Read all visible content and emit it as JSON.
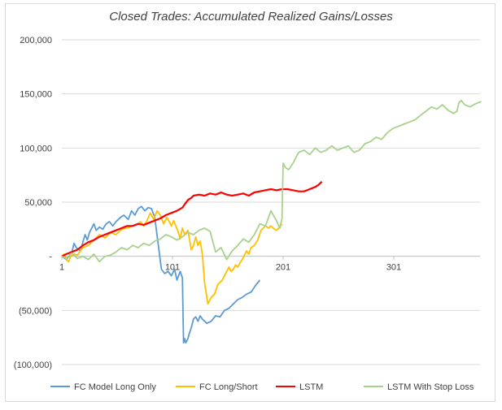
{
  "chart_data": {
    "type": "line",
    "title": "Closed Trades: Accumulated Realized Gains/Losses",
    "xlabel": "",
    "ylabel": "",
    "xlim": [
      1,
      380
    ],
    "ylim": [
      -100000,
      200000
    ],
    "y_ticks": [
      200000,
      150000,
      100000,
      50000,
      0,
      -50000,
      -100000
    ],
    "y_tick_labels": [
      "200,000",
      "150,000",
      "100,000",
      "50,000",
      "-",
      "(50,000)",
      "(100,000)"
    ],
    "x_ticks": [
      1,
      101,
      201,
      301
    ],
    "x_tick_labels": [
      "1",
      "101",
      "201",
      "301"
    ],
    "grid": "horizontal",
    "legend_position": "bottom",
    "series": [
      {
        "name": "FC Model Long Only",
        "color": "#5b9bd5",
        "x": [
          1,
          5,
          10,
          12,
          14,
          18,
          20,
          22,
          24,
          26,
          30,
          32,
          35,
          38,
          41,
          44,
          47,
          50,
          54,
          57,
          61,
          64,
          67,
          70,
          73,
          76,
          79,
          82,
          85,
          88,
          91,
          94,
          97,
          100,
          103,
          105,
          108,
          110,
          111,
          112,
          113,
          114,
          115,
          116,
          118,
          120,
          122,
          124,
          126,
          128,
          132,
          136,
          140,
          144,
          148,
          152,
          156,
          160,
          164,
          168,
          172,
          176,
          180
        ],
        "y": [
          0,
          -3000,
          3000,
          12000,
          8000,
          5000,
          13000,
          20000,
          15000,
          22000,
          30000,
          24000,
          27000,
          25000,
          30000,
          32000,
          28000,
          32000,
          36000,
          38000,
          34000,
          42000,
          38000,
          44000,
          46000,
          42000,
          45000,
          44000,
          36000,
          12000,
          -12000,
          -16000,
          -14000,
          -18000,
          -12000,
          -22000,
          -14000,
          -20000,
          -80000,
          -76000,
          -80000,
          -78000,
          -76000,
          -72000,
          -66000,
          -58000,
          -56000,
          -60000,
          -55000,
          -58000,
          -62000,
          -60000,
          -55000,
          -56000,
          -50000,
          -48000,
          -44000,
          -40000,
          -38000,
          -35000,
          -33000,
          -27000,
          -22000
        ]
      },
      {
        "name": "FC Long/Short",
        "color": "#ffc000",
        "x": [
          1,
          3,
          5,
          7,
          9,
          12,
          15,
          20,
          25,
          30,
          35,
          40,
          45,
          50,
          55,
          60,
          65,
          70,
          72,
          75,
          78,
          81,
          84,
          87,
          90,
          93,
          96,
          100,
          102,
          104,
          106,
          108,
          110,
          112,
          115,
          118,
          120,
          122,
          124,
          126,
          128,
          130,
          133,
          136,
          139,
          142,
          144,
          146,
          148,
          150,
          152,
          154,
          156,
          158,
          160,
          162,
          164,
          166,
          168,
          170,
          172,
          175,
          178,
          181,
          185,
          188,
          190,
          192,
          195,
          198,
          200
        ],
        "y": [
          0,
          2000,
          -3000,
          -5000,
          0,
          2000,
          1000,
          8000,
          10000,
          15000,
          20000,
          17000,
          22000,
          20000,
          25000,
          26000,
          28000,
          30000,
          32000,
          28000,
          33000,
          40000,
          34000,
          42000,
          38000,
          30000,
          36000,
          28000,
          33000,
          28000,
          23000,
          16000,
          26000,
          20000,
          24000,
          6000,
          10000,
          18000,
          10000,
          14000,
          2000,
          -24000,
          -44000,
          -38000,
          -35000,
          -26000,
          -24000,
          -22000,
          -18000,
          -14000,
          -10000,
          -14000,
          -12000,
          -8000,
          -10000,
          -6000,
          -3000,
          1000,
          5000,
          2000,
          8000,
          10000,
          15000,
          24000,
          28000,
          26000,
          28000,
          26000,
          24000,
          27000,
          30000
        ]
      },
      {
        "name": "LSTM",
        "color": "#ff0000",
        "x": [
          1,
          5,
          10,
          15,
          20,
          25,
          30,
          35,
          40,
          45,
          50,
          55,
          60,
          65,
          70,
          75,
          80,
          85,
          90,
          95,
          100,
          105,
          110,
          112,
          115,
          118,
          120,
          125,
          130,
          135,
          140,
          145,
          150,
          155,
          160,
          165,
          170,
          175,
          180,
          185,
          190,
          195,
          200,
          205,
          210,
          215,
          220,
          225,
          230,
          233,
          236
        ],
        "y": [
          0,
          2000,
          4000,
          6000,
          10000,
          13000,
          15000,
          18000,
          20000,
          22000,
          24000,
          26000,
          28000,
          28000,
          30000,
          29000,
          31000,
          33000,
          35000,
          38000,
          40000,
          42000,
          45000,
          48000,
          52000,
          54000,
          56000,
          57000,
          56000,
          58000,
          57000,
          59000,
          57000,
          56000,
          57000,
          58000,
          56000,
          59000,
          60000,
          61000,
          62000,
          61000,
          62000,
          62000,
          61000,
          60000,
          60000,
          62000,
          64000,
          66000,
          69000
        ]
      },
      {
        "name": "LSTM With Stop Loss",
        "color": "#a9d18e",
        "x": [
          1,
          5,
          10,
          15,
          20,
          25,
          30,
          35,
          40,
          45,
          50,
          55,
          60,
          65,
          70,
          75,
          80,
          85,
          90,
          95,
          100,
          105,
          110,
          115,
          120,
          125,
          130,
          135,
          140,
          145,
          150,
          155,
          160,
          165,
          170,
          175,
          180,
          185,
          190,
          195,
          198,
          200,
          201,
          203,
          206,
          210,
          215,
          220,
          225,
          230,
          235,
          240,
          245,
          250,
          255,
          260,
          265,
          270,
          275,
          280,
          285,
          290,
          295,
          300,
          305,
          310,
          315,
          320,
          325,
          330,
          335,
          340,
          345,
          350,
          355,
          358,
          360,
          362,
          365,
          370,
          375,
          380
        ],
        "y": [
          0,
          -2000,
          3000,
          -2000,
          0,
          -3000,
          2000,
          -5000,
          0,
          1000,
          4000,
          8000,
          6000,
          10000,
          8000,
          12000,
          10000,
          14000,
          16000,
          20000,
          18000,
          15000,
          18000,
          22000,
          20000,
          24000,
          26000,
          23000,
          4000,
          8000,
          -3000,
          5000,
          10000,
          16000,
          13000,
          20000,
          30000,
          28000,
          42000,
          33000,
          26000,
          35000,
          86000,
          82000,
          80000,
          86000,
          96000,
          98000,
          94000,
          100000,
          96000,
          98000,
          102000,
          98000,
          100000,
          102000,
          96000,
          98000,
          104000,
          106000,
          110000,
          108000,
          114000,
          118000,
          120000,
          122000,
          124000,
          126000,
          130000,
          134000,
          138000,
          136000,
          140000,
          135000,
          132000,
          134000,
          142000,
          144000,
          140000,
          138000,
          141000,
          143000
        ]
      }
    ]
  }
}
